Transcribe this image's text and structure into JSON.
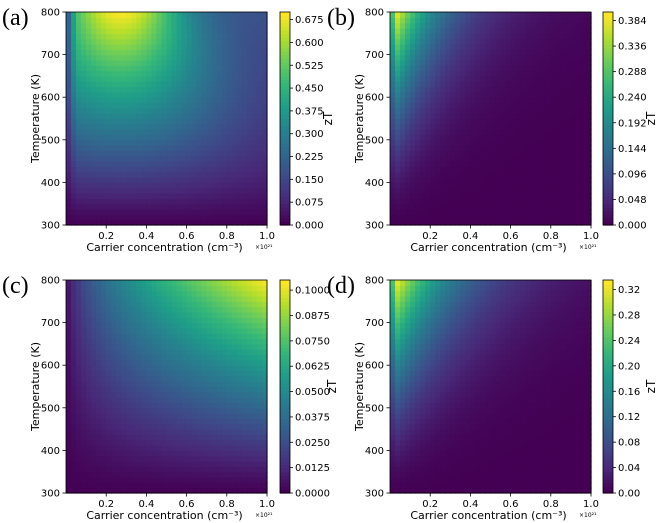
{
  "chart_data": [
    {
      "panel_label": "(a)",
      "type": "heatmap",
      "xlabel": "Carrier concentration (cm⁻³)",
      "ylabel": "Temperature (K)",
      "x_exponent_label": "×10²¹",
      "xlim": [
        0.0,
        1.0
      ],
      "ylim": [
        300,
        800
      ],
      "x_ticks": [
        "0.2",
        "0.4",
        "0.6",
        "0.8",
        "1.0"
      ],
      "y_ticks": [
        "300",
        "400",
        "500",
        "600",
        "700",
        "800"
      ],
      "colorbar_label": "zT",
      "colorbar_ticks": [
        "0.000",
        "0.075",
        "0.150",
        "0.225",
        "0.300",
        "0.375",
        "0.450",
        "0.525",
        "0.600",
        "0.675"
      ],
      "z_range": [
        0.0,
        0.7
      ],
      "peak": {
        "x": 0.27,
        "y": 800,
        "z": 0.7
      },
      "colormap": "viridis"
    },
    {
      "panel_label": "(b)",
      "type": "heatmap",
      "xlabel": "Carrier concentration (cm⁻³)",
      "ylabel": "Temperature (K)",
      "x_exponent_label": "×10²¹",
      "xlim": [
        0.0,
        1.0
      ],
      "ylim": [
        300,
        800
      ],
      "x_ticks": [
        "0.2",
        "0.4",
        "0.6",
        "0.8",
        "1.0"
      ],
      "y_ticks": [
        "300",
        "400",
        "500",
        "600",
        "700",
        "800"
      ],
      "colorbar_label": "zT",
      "colorbar_ticks": [
        "0.000",
        "0.048",
        "0.096",
        "0.144",
        "0.192",
        "0.240",
        "0.288",
        "0.336",
        "0.384"
      ],
      "z_range": [
        0.0,
        0.4
      ],
      "peak": {
        "x": 0.03,
        "y": 800,
        "z": 0.4
      },
      "colormap": "viridis"
    },
    {
      "panel_label": "(c)",
      "type": "heatmap",
      "xlabel": "Carrier concentration (cm⁻³)",
      "ylabel": "Temperature (K)",
      "x_exponent_label": "×10²¹",
      "xlim": [
        0.0,
        1.0
      ],
      "ylim": [
        300,
        800
      ],
      "x_ticks": [
        "0.2",
        "0.4",
        "0.6",
        "0.8",
        "1.0"
      ],
      "y_ticks": [
        "300",
        "400",
        "500",
        "600",
        "700",
        "800"
      ],
      "colorbar_label": "zT",
      "colorbar_ticks": [
        "0.0000",
        "0.0125",
        "0.0250",
        "0.0375",
        "0.0500",
        "0.0625",
        "0.0750",
        "0.0875",
        "0.1000"
      ],
      "z_range": [
        0.0,
        0.105
      ],
      "peak": {
        "x": 1.0,
        "y": 800,
        "z": 0.105
      },
      "colormap": "viridis"
    },
    {
      "panel_label": "(d)",
      "type": "heatmap",
      "xlabel": "Carrier concentration (cm⁻³)",
      "ylabel": "Temperature (K)",
      "x_exponent_label": "×10²¹",
      "xlim": [
        0.0,
        1.0
      ],
      "ylim": [
        300,
        800
      ],
      "x_ticks": [
        "0.2",
        "0.4",
        "0.6",
        "0.8",
        "1.0"
      ],
      "y_ticks": [
        "300",
        "400",
        "500",
        "600",
        "700",
        "800"
      ],
      "colorbar_label": "zT",
      "colorbar_ticks": [
        "0.00",
        "0.04",
        "0.08",
        "0.12",
        "0.16",
        "0.20",
        "0.24",
        "0.28",
        "0.32"
      ],
      "z_range": [
        0.0,
        0.335
      ],
      "peak": {
        "x": 0.03,
        "y": 800,
        "z": 0.335
      },
      "colormap": "viridis"
    }
  ]
}
